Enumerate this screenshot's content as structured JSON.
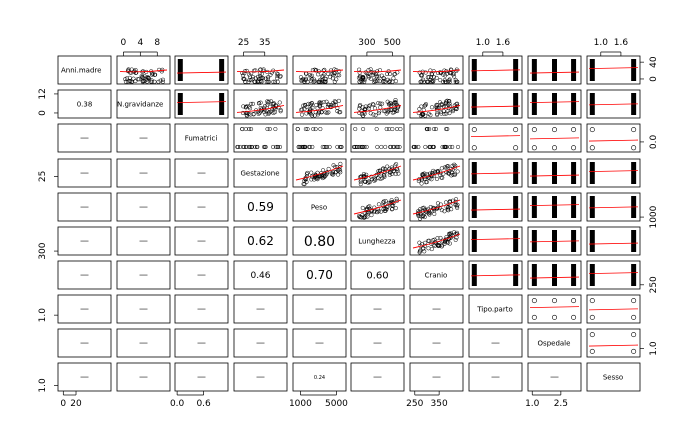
{
  "chart_data": {
    "type": "scatter",
    "variables": [
      "Anni.madre",
      "N.gravidanze",
      "Fumatrici",
      "Gestazione",
      "Peso",
      "Lunghezza",
      "Cranio",
      "Tipo.parto",
      "Ospedale",
      "Sesso"
    ],
    "correlations": [
      {
        "row": 2,
        "col": 1,
        "text": "0.38"
      },
      {
        "row": 5,
        "col": 4,
        "text": "0.59"
      },
      {
        "row": 6,
        "col": 4,
        "text": "0.62"
      },
      {
        "row": 6,
        "col": 5,
        "text": "0.80"
      },
      {
        "row": 7,
        "col": 4,
        "text": "0.46"
      },
      {
        "row": 7,
        "col": 5,
        "text": "0.70"
      },
      {
        "row": 7,
        "col": 6,
        "text": "0.60"
      },
      {
        "row": 10,
        "col": 5,
        "text": "0.24"
      }
    ],
    "top_axis_ticks": [
      {
        "col": 2,
        "labels": [
          "0",
          "4",
          "8"
        ]
      },
      {
        "col": 4,
        "labels": [
          "25",
          "35"
        ]
      },
      {
        "col": 6,
        "labels": [
          "300",
          "500"
        ]
      },
      {
        "col": 8,
        "labels": [
          "1.0",
          "1.6"
        ]
      },
      {
        "col": 10,
        "labels": [
          "1.0",
          "1.6"
        ]
      }
    ],
    "bottom_axis_ticks": [
      {
        "col": 1,
        "labels": [
          "0",
          "20"
        ]
      },
      {
        "col": 3,
        "labels": [
          "0.0",
          "0.6"
        ]
      },
      {
        "col": 5,
        "labels": [
          "1000",
          "5000"
        ]
      },
      {
        "col": 7,
        "labels": [
          "250",
          "350"
        ]
      },
      {
        "col": 9,
        "labels": [
          "1.0",
          "2.5"
        ]
      }
    ],
    "left_axis_ticks": [
      {
        "row": 2,
        "labels": [
          "0",
          "12"
        ]
      },
      {
        "row": 4,
        "labels": [
          "25"
        ]
      },
      {
        "row": 6,
        "labels": [
          "300"
        ]
      },
      {
        "row": 8,
        "labels": [
          "1.0"
        ]
      },
      {
        "row": 10,
        "labels": [
          "1.0"
        ]
      }
    ],
    "right_axis_ticks": [
      {
        "row": 1,
        "labels": [
          "0",
          "40"
        ]
      },
      {
        "row": 3,
        "labels": [
          "0.0"
        ]
      },
      {
        "row": 5,
        "labels": [
          "1000"
        ]
      },
      {
        "row": 7,
        "labels": [
          "250"
        ]
      },
      {
        "row": 9,
        "labels": [
          "1.0"
        ]
      }
    ],
    "colors": {
      "points": "#000000",
      "smoother": "#ff0000",
      "frame": "#000000"
    }
  }
}
